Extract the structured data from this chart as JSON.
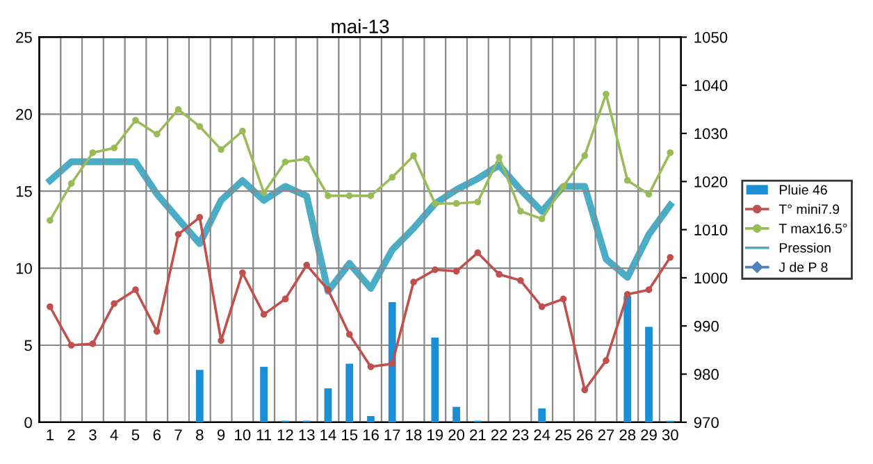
{
  "chart_data": {
    "type": "bar",
    "title": "mai-13",
    "categories": [
      "1",
      "2",
      "3",
      "4",
      "5",
      "6",
      "7",
      "8",
      "9",
      "10",
      "11",
      "12",
      "13",
      "14",
      "15",
      "16",
      "17",
      "18",
      "19",
      "20",
      "21",
      "22",
      "23",
      "24",
      "25",
      "26",
      "27",
      "28",
      "29",
      "30"
    ],
    "series": [
      {
        "name": "Pluie 46",
        "color": "#1a8fd6",
        "values": [
          0,
          0,
          0,
          0,
          0,
          0,
          0,
          3.4,
          0,
          0,
          3.6,
          0.1,
          0.1,
          2.2,
          3.8,
          0.4,
          7.8,
          0,
          5.5,
          1.0,
          0.1,
          0,
          0,
          0.9,
          0,
          0,
          0,
          8.2,
          6.2,
          0.1
        ]
      },
      {
        "name": "T° mini7.9",
        "type": "line",
        "color": "#c0504d",
        "marker": "circle",
        "values": [
          7.5,
          5.0,
          5.1,
          7.7,
          8.6,
          5.9,
          12.2,
          13.3,
          5.3,
          9.7,
          7.0,
          8.0,
          10.2,
          8.6,
          5.7,
          3.6,
          3.8,
          9.1,
          9.9,
          9.8,
          11.0,
          9.6,
          9.2,
          7.5,
          8.0,
          2.1,
          4.0,
          8.3,
          8.6,
          10.7
        ]
      },
      {
        "name": "T max16.5°",
        "type": "line",
        "color": "#9bbb59",
        "marker": "circle",
        "values": [
          13.1,
          15.5,
          17.5,
          17.8,
          19.6,
          18.7,
          20.3,
          19.2,
          17.7,
          18.9,
          14.9,
          16.9,
          17.1,
          14.7,
          14.7,
          14.7,
          15.9,
          17.3,
          14.2,
          14.2,
          14.3,
          17.2,
          13.7,
          13.2,
          15.3,
          17.3,
          21.3,
          15.7,
          14.8,
          17.5
        ]
      },
      {
        "name": "Pression",
        "type": "line",
        "axis": "y2",
        "color": "#4bacc6",
        "values": [
          1020.2,
          1024.1,
          1024.1,
          1024.1,
          1024.1,
          1017.4,
          1012.2,
          1007.1,
          1016.1,
          1020.2,
          1016.1,
          1019,
          1017,
          997.2,
          1003,
          997.8,
          1005.8,
          1010.3,
          1015.4,
          1018.3,
          1020.6,
          1023.4,
          1018.3,
          1013.8,
          1019,
          1019,
          1003.9,
          1000.1,
          1009,
          1015.1
        ]
      },
      {
        "name": "J de P 8",
        "type": "line",
        "color": "#4f81bd",
        "marker": "diamond",
        "values": [
          null,
          null,
          null,
          null,
          null,
          null,
          null,
          null,
          null,
          null,
          null,
          null,
          null,
          null,
          null,
          null,
          null,
          null,
          null,
          null,
          null,
          null,
          null,
          null,
          null,
          null,
          null,
          null,
          null,
          null
        ]
      }
    ],
    "ylim": [
      0,
      25
    ],
    "yticks": [
      0,
      5,
      10,
      15,
      20,
      25
    ],
    "y2lim": [
      970,
      1050
    ],
    "y2ticks": [
      970,
      980,
      990,
      1000,
      1010,
      1020,
      1030,
      1040,
      1050
    ],
    "grid": true,
    "legend": "right"
  }
}
